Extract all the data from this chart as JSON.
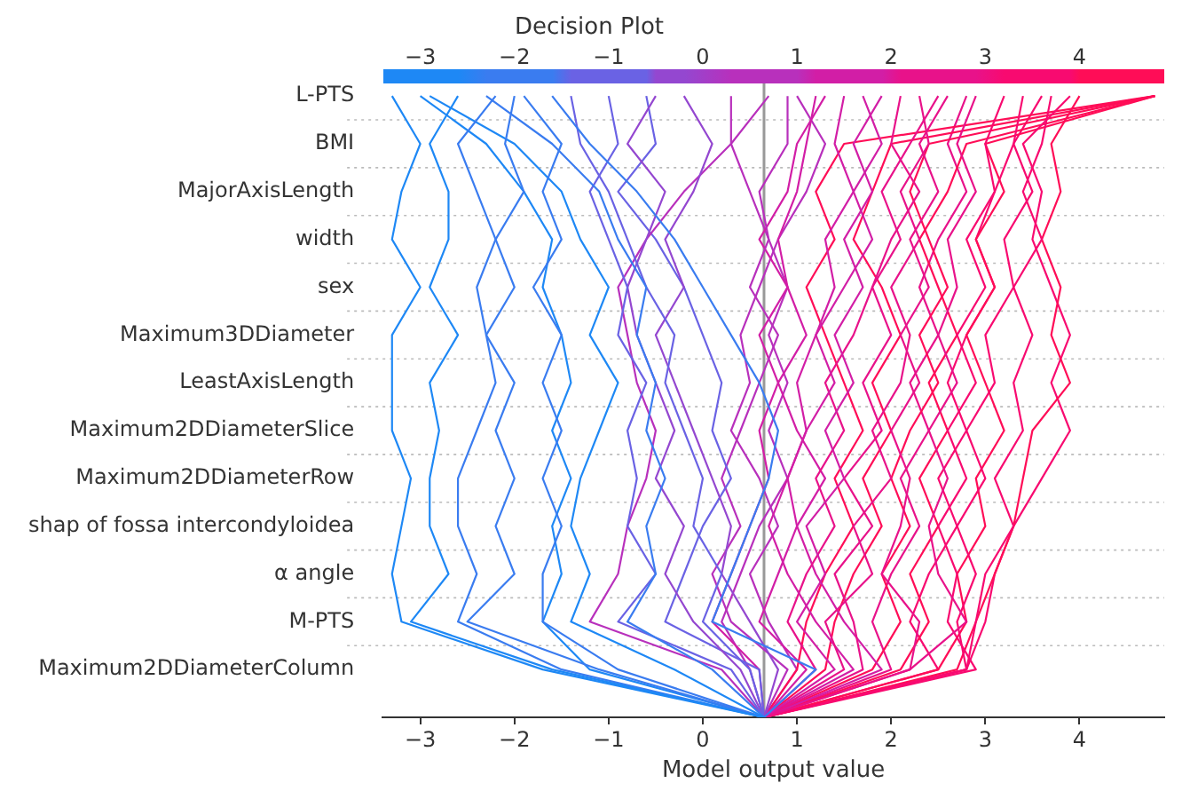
{
  "chart_data": {
    "type": "line",
    "orientation": "horizontal",
    "title": "Decision Plot",
    "xlabel": "Model output value",
    "categories": [
      "L-PTS",
      "BMI",
      "MajorAxisLength",
      "width",
      "sex",
      "Maximum3DDiameter",
      "LeastAxisLength",
      "Maximum2DDiameterSlice",
      "Maximum2DDiameterRow",
      "shap of fossa intercondyloidea",
      "α angle",
      "M-PTS",
      "Maximum2DDiameterColumn",
      null
    ],
    "xlim": [
      -3.4,
      4.9
    ],
    "xticks": [
      -3,
      -2,
      -1,
      0,
      1,
      2,
      3,
      4
    ],
    "x2lim": [
      -3.4,
      4.9
    ],
    "x2ticks": [
      -3,
      -2,
      -1,
      0,
      1,
      2,
      3,
      4
    ],
    "ref_lines": [
      {
        "axis": "x",
        "value": 0.65,
        "color": "#999999"
      }
    ],
    "grid": "y",
    "legend": false,
    "marker": "none",
    "line_style": "solid",
    "series": [
      {
        "color": "#1e88f5",
        "values": [
          -3.3,
          -3.0,
          -3.2,
          -3.3,
          -3.0,
          -3.3,
          -3.3,
          -3.3,
          -3.1,
          -3.2,
          -3.3,
          -3.2,
          -1.7,
          0.65
        ]
      },
      {
        "color": "#1e88f5",
        "values": [
          -2.6,
          -2.9,
          -2.7,
          -2.7,
          -2.9,
          -2.6,
          -2.9,
          -2.8,
          -2.9,
          -2.9,
          -2.7,
          -3.1,
          -1.6,
          0.65
        ]
      },
      {
        "color": "#3a7cf0",
        "values": [
          -2.2,
          -2.6,
          -2.4,
          -2.2,
          -2.4,
          -2.3,
          -2.2,
          -2.4,
          -2.6,
          -2.6,
          -2.4,
          -2.6,
          -1.5,
          0.65
        ]
      },
      {
        "color": "#3a7cf0",
        "values": [
          -2.0,
          -2.1,
          -1.9,
          -2.2,
          -2.0,
          -2.3,
          -2.0,
          -2.2,
          -2.0,
          -2.2,
          -2.0,
          -2.5,
          -1.1,
          0.65
        ]
      },
      {
        "color": "#3a7cf0",
        "values": [
          -1.9,
          -1.5,
          -1.7,
          -1.5,
          -1.8,
          -1.5,
          -1.7,
          -1.5,
          -1.7,
          -1.5,
          -1.7,
          -1.7,
          -0.9,
          0.65
        ]
      },
      {
        "color": "#1e88f5",
        "values": [
          -3.0,
          -2.3,
          -1.9,
          -1.6,
          -1.7,
          -1.5,
          -1.4,
          -1.6,
          -1.4,
          -1.6,
          -1.5,
          -1.7,
          -1.2,
          0.65
        ]
      },
      {
        "color": "#1e88f5",
        "values": [
          -2.9,
          -2.0,
          -1.5,
          -1.3,
          -1.0,
          -1.2,
          -0.9,
          -1.1,
          -1.3,
          -1.4,
          -1.2,
          -1.4,
          -0.3,
          0.65
        ]
      },
      {
        "color": "#3a7cf0",
        "values": [
          -2.3,
          -1.6,
          -1.1,
          -0.9,
          -0.6,
          -0.7,
          -0.5,
          -0.6,
          -0.4,
          -0.6,
          -0.5,
          -0.8,
          0.1,
          0.65
        ]
      },
      {
        "color": "#3a7cf0",
        "values": [
          -1.6,
          -1.2,
          -0.7,
          -0.3,
          0.0,
          0.3,
          0.6,
          0.8,
          0.7,
          0.5,
          0.3,
          0.1,
          1.2,
          0.65
        ]
      },
      {
        "color": "#6a62e4",
        "values": [
          -1.4,
          -1.3,
          -1.0,
          -0.8,
          -0.6,
          -0.3,
          -0.4,
          -0.2,
          0.0,
          -0.1,
          0.2,
          0.0,
          0.5,
          0.65
        ]
      },
      {
        "color": "#6a62e4",
        "values": [
          -1.0,
          -0.9,
          -1.2,
          -1.0,
          -0.8,
          -0.9,
          -0.6,
          -0.8,
          -0.7,
          -0.8,
          -0.5,
          -0.9,
          0.3,
          0.65
        ]
      },
      {
        "color": "#9447d0",
        "values": [
          -0.5,
          -0.8,
          -0.4,
          -0.6,
          -0.8,
          -0.7,
          -0.5,
          -0.3,
          -0.5,
          -0.2,
          -0.4,
          -0.1,
          0.4,
          0.65
        ]
      },
      {
        "color": "#9447d0",
        "values": [
          -0.2,
          0.1,
          -0.1,
          -0.4,
          -0.2,
          -0.5,
          -0.3,
          -0.1,
          0.1,
          0.3,
          0.2,
          0.5,
          0.8,
          0.65
        ]
      },
      {
        "color": "#b830bc",
        "values": [
          0.3,
          0.3,
          -0.2,
          -0.6,
          -0.9,
          -0.8,
          -0.7,
          -0.5,
          -0.6,
          -0.8,
          -0.9,
          -1.2,
          0.2,
          0.65
        ]
      },
      {
        "color": "#6a62e4",
        "values": [
          -0.6,
          -0.5,
          -0.9,
          -0.5,
          -0.2,
          0.0,
          0.2,
          0.1,
          0.3,
          0.0,
          -0.2,
          -0.4,
          0.6,
          0.65
        ]
      },
      {
        "color": "#b830bc",
        "values": [
          0.9,
          0.9,
          0.6,
          0.7,
          0.5,
          0.8,
          0.6,
          0.4,
          0.2,
          0.4,
          0.1,
          0.3,
          0.9,
          0.65
        ]
      },
      {
        "color": "#d21ea6",
        "values": [
          1.2,
          1.1,
          1.0,
          0.8,
          0.9,
          0.6,
          0.8,
          0.6,
          0.7,
          0.5,
          0.3,
          0.1,
          0.6,
          0.65
        ]
      },
      {
        "color": "#d21ea6",
        "values": [
          1.5,
          1.4,
          1.6,
          1.3,
          1.4,
          1.2,
          1.0,
          1.1,
          0.9,
          1.0,
          0.8,
          0.6,
          1.1,
          0.65
        ]
      },
      {
        "color": "#d21ea6",
        "values": [
          1.9,
          1.6,
          1.8,
          1.5,
          1.7,
          1.4,
          1.6,
          1.3,
          1.5,
          1.1,
          1.3,
          1.0,
          1.4,
          0.65
        ]
      },
      {
        "color": "#e8128a",
        "values": [
          2.1,
          2.0,
          2.3,
          2.0,
          1.8,
          2.0,
          1.7,
          1.9,
          1.5,
          1.8,
          1.4,
          1.6,
          1.7,
          0.65
        ]
      },
      {
        "color": "#e8128a",
        "values": [
          2.3,
          2.4,
          2.1,
          2.3,
          2.0,
          2.2,
          2.1,
          1.8,
          2.0,
          1.6,
          1.8,
          1.3,
          1.5,
          0.65
        ]
      },
      {
        "color": "#e8128a",
        "values": [
          2.6,
          2.3,
          2.5,
          2.2,
          2.4,
          2.1,
          2.3,
          2.0,
          2.2,
          2.1,
          1.9,
          2.3,
          2.2,
          0.65
        ]
      },
      {
        "color": "#e8128a",
        "values": [
          2.9,
          2.7,
          2.9,
          2.6,
          2.7,
          2.5,
          2.7,
          2.4,
          2.6,
          2.4,
          2.5,
          2.8,
          2.2,
          0.65
        ]
      },
      {
        "color": "#f80a70",
        "values": [
          3.2,
          3.0,
          3.1,
          2.8,
          3.0,
          2.7,
          2.9,
          2.6,
          2.8,
          2.5,
          2.7,
          2.6,
          2.9,
          0.65
        ]
      },
      {
        "color": "#f80a70",
        "values": [
          3.4,
          3.3,
          3.5,
          3.2,
          3.3,
          3.0,
          3.1,
          2.8,
          3.0,
          2.7,
          2.9,
          2.7,
          2.8,
          0.65
        ]
      },
      {
        "color": "#f80a70",
        "values": [
          3.7,
          3.6,
          3.4,
          3.6,
          3.3,
          3.5,
          3.3,
          3.4,
          3.1,
          3.3,
          3.0,
          2.9,
          2.8,
          0.65
        ]
      },
      {
        "color": "#ff0d57",
        "values": [
          4.0,
          3.7,
          3.8,
          3.6,
          3.8,
          3.7,
          3.9,
          3.5,
          3.4,
          3.3,
          3.1,
          2.9,
          2.7,
          0.65
        ]
      },
      {
        "color": "#f80a70",
        "values": [
          3.9,
          3.4,
          3.6,
          3.5,
          3.7,
          3.9,
          3.7,
          3.9,
          3.6,
          3.3,
          3.1,
          3.0,
          2.8,
          0.65
        ]
      },
      {
        "color": "#d21ea6",
        "values": [
          1.7,
          1.9,
          1.6,
          1.8,
          1.5,
          1.2,
          1.4,
          1.1,
          0.9,
          0.7,
          0.9,
          1.2,
          1.6,
          0.65
        ]
      },
      {
        "color": "#e8128a",
        "values": [
          2.5,
          2.2,
          1.9,
          2.1,
          1.8,
          1.6,
          1.3,
          1.5,
          1.2,
          1.4,
          1.1,
          0.9,
          1.2,
          0.65
        ]
      },
      {
        "color": "#d21ea6",
        "values": [
          1.3,
          1.0,
          0.9,
          0.6,
          0.9,
          1.1,
          0.8,
          1.0,
          1.3,
          1.0,
          1.2,
          1.5,
          1.9,
          0.65
        ]
      },
      {
        "color": "#ff0d57",
        "values": [
          4.8,
          2.4,
          2.2,
          2.4,
          2.6,
          2.3,
          2.5,
          2.2,
          2.0,
          2.2,
          1.9,
          2.1,
          1.8,
          0.65
        ]
      },
      {
        "color": "#ff0d57",
        "values": [
          4.8,
          2.8,
          2.6,
          2.3,
          2.5,
          2.7,
          2.4,
          2.6,
          2.3,
          2.5,
          2.2,
          2.4,
          2.1,
          0.65
        ]
      },
      {
        "color": "#ff0d57",
        "values": [
          4.8,
          2.0,
          1.8,
          1.6,
          1.9,
          2.1,
          1.8,
          2.0,
          1.7,
          1.9,
          1.6,
          1.4,
          1.3,
          0.65
        ]
      },
      {
        "color": "#ff0d57",
        "values": [
          4.8,
          3.0,
          3.2,
          2.9,
          3.1,
          2.8,
          3.0,
          3.2,
          2.9,
          3.0,
          2.7,
          2.8,
          2.5,
          0.65
        ]
      },
      {
        "color": "#ff0d57",
        "values": [
          4.8,
          1.5,
          1.2,
          1.4,
          1.1,
          1.3,
          1.5,
          1.7,
          1.4,
          1.6,
          1.3,
          1.1,
          1.0,
          0.65
        ]
      },
      {
        "color": "#f80a70",
        "values": [
          3.6,
          3.3,
          3.1,
          2.9,
          3.1,
          2.8,
          2.6,
          2.8,
          2.5,
          2.7,
          2.4,
          2.2,
          2.5,
          0.65
        ]
      },
      {
        "color": "#e8128a",
        "values": [
          2.8,
          2.6,
          2.8,
          2.5,
          2.3,
          2.5,
          2.2,
          2.4,
          2.1,
          2.3,
          2.0,
          1.8,
          2.0,
          0.65
        ]
      },
      {
        "color": "#b830bc",
        "values": [
          1.0,
          1.3,
          1.1,
          0.8,
          0.6,
          0.4,
          0.5,
          0.3,
          0.6,
          0.8,
          0.5,
          0.7,
          1.0,
          0.65
        ]
      },
      {
        "color": "#b830bc",
        "values": [
          0.7,
          0.3,
          0.5,
          0.7,
          0.9,
          0.7,
          0.9,
          0.7,
          0.9,
          0.6,
          0.4,
          0.2,
          0.5,
          0.65
        ]
      }
    ]
  }
}
